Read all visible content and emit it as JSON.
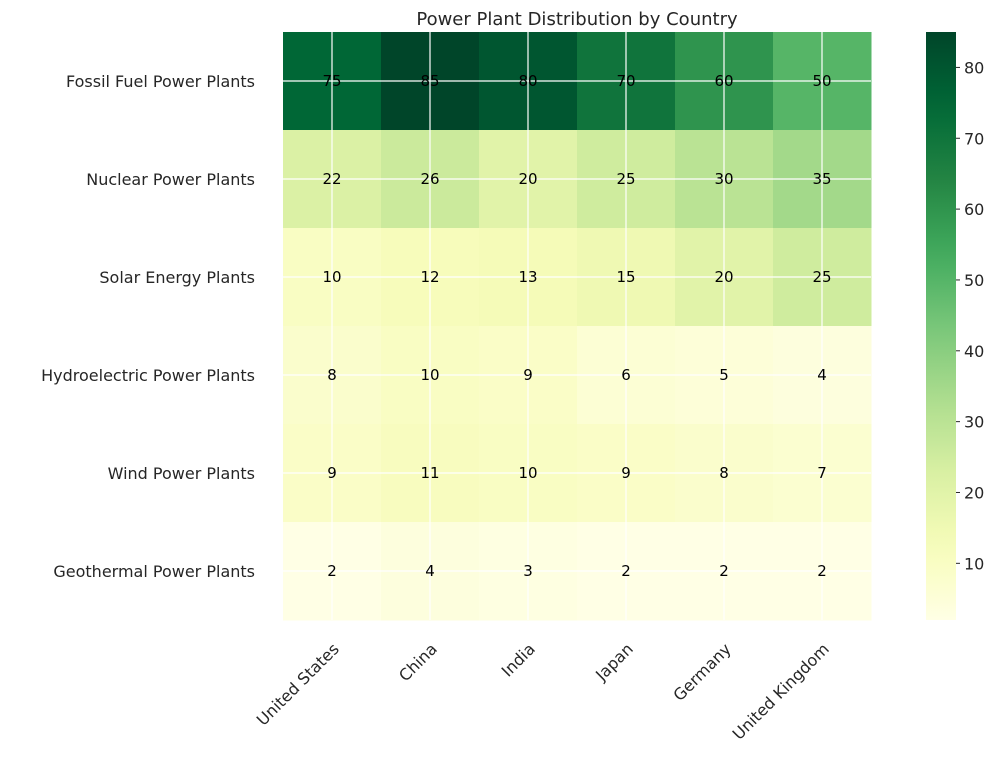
{
  "chart_data": {
    "type": "heatmap",
    "title": "Power Plant Distribution by Country",
    "xlabel": "",
    "ylabel": "",
    "columns": [
      "United States",
      "China",
      "India",
      "Japan",
      "Germany",
      "United Kingdom"
    ],
    "rows": [
      "Fossil Fuel Power Plants",
      "Nuclear Power Plants",
      "Solar Energy Plants",
      "Hydroelectric Power Plants",
      "Wind Power Plants",
      "Geothermal Power Plants"
    ],
    "values": [
      [
        75,
        85,
        80,
        70,
        60,
        50
      ],
      [
        22,
        26,
        20,
        25,
        30,
        35
      ],
      [
        10,
        12,
        13,
        15,
        20,
        25
      ],
      [
        8,
        10,
        9,
        6,
        5,
        4
      ],
      [
        9,
        11,
        10,
        9,
        8,
        7
      ],
      [
        2,
        4,
        3,
        2,
        2,
        2
      ]
    ],
    "colormap": "YlGn",
    "color_range": [
      2,
      85
    ],
    "colorbar_ticks": [
      10,
      20,
      30,
      40,
      50,
      60,
      70,
      80
    ],
    "grid": true,
    "cell_labels": true
  }
}
